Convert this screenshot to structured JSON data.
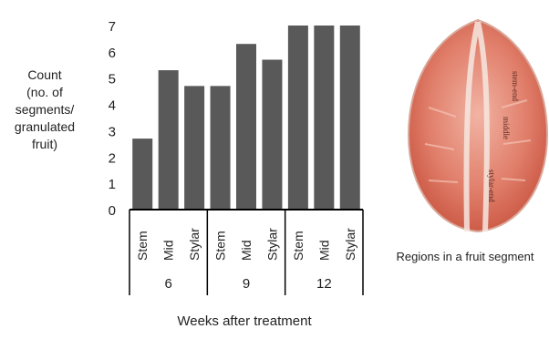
{
  "chart_data": {
    "type": "bar",
    "ylabel_lines": [
      "Count",
      "(no. of",
      "segments/",
      "granulated",
      "fruit)"
    ],
    "xlabel": "Weeks after treatment",
    "ylim": [
      0,
      7
    ],
    "yticks": [
      0,
      1,
      2,
      3,
      4,
      5,
      6,
      7
    ],
    "groups": [
      "6",
      "9",
      "12"
    ],
    "categories": [
      "Stem",
      "Mid",
      "Stylar",
      "Stem",
      "Mid",
      "Stylar",
      "Stem",
      "Mid",
      "Stylar"
    ],
    "values": [
      2.7,
      5.3,
      4.7,
      4.7,
      6.3,
      5.7,
      7.0,
      7.0,
      7.0
    ],
    "bar_color": "#595959",
    "grid": false
  },
  "figure": {
    "caption": "Regions in a fruit segment",
    "labels": [
      "stem-end",
      "middle",
      "stylar-end"
    ],
    "fruit_color": "#e08a78"
  }
}
